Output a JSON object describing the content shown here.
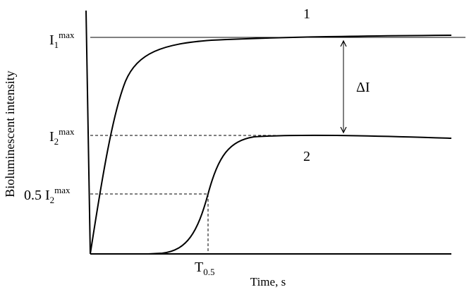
{
  "axes": {
    "x_label": "Time, s",
    "y_label": "Bioluminescent intensity"
  },
  "curves": [
    {
      "label": "1"
    },
    {
      "label": "2"
    }
  ],
  "levels": [
    {
      "base": "I",
      "sub": "1",
      "sup": "max"
    },
    {
      "base": "I",
      "sub": "2",
      "sup": "max"
    },
    {
      "prefix": "0.5",
      "base": "I",
      "sub": "2",
      "sup": "max"
    }
  ],
  "time_mark": {
    "base": "T",
    "sub": "0.5"
  },
  "delta": "ΔI"
}
